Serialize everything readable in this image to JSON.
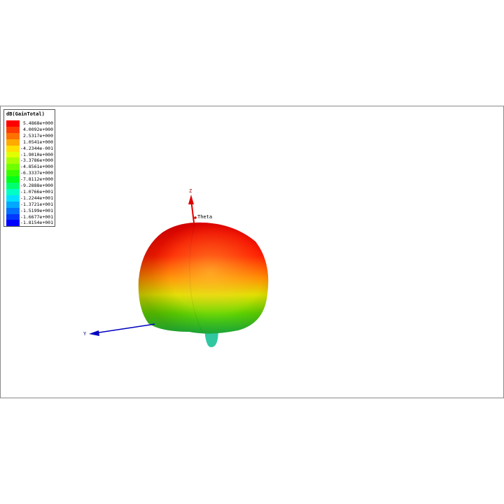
{
  "legend": {
    "title": "dB(GainTotal)",
    "entries": [
      {
        "value": "5.4868e+000",
        "color": "#ff0000"
      },
      {
        "value": "4.0092e+000",
        "color": "#ff3a00"
      },
      {
        "value": "2.5317e+000",
        "color": "#ff7200"
      },
      {
        "value": "1.0541e+000",
        "color": "#ffaa00"
      },
      {
        "value": "-4.2344e-001",
        "color": "#ffe000"
      },
      {
        "value": "-1.9010e+000",
        "color": "#e0ff00"
      },
      {
        "value": "-3.3786e+000",
        "color": "#a8ff00"
      },
      {
        "value": "-4.8561e+000",
        "color": "#70ff00"
      },
      {
        "value": "-6.3337e+000",
        "color": "#38ff00"
      },
      {
        "value": "-7.8112e+000",
        "color": "#00ff1c"
      },
      {
        "value": "-9.2888e+000",
        "color": "#00ff70"
      },
      {
        "value": "-1.0766e+001",
        "color": "#00ffc4"
      },
      {
        "value": "-1.2244e+001",
        "color": "#00e0ff"
      },
      {
        "value": "-1.3721e+001",
        "color": "#00a8ff"
      },
      {
        "value": "-1.5199e+001",
        "color": "#0070ff"
      },
      {
        "value": "-1.6677e+001",
        "color": "#0038ff"
      },
      {
        "value": "-1.8154e+001",
        "color": "#0000ff"
      }
    ]
  },
  "axes": {
    "z_label": "Z",
    "y_label": "Y",
    "theta_label": "Theta",
    "z_color": "#e00000",
    "y_color": "#0000c0"
  }
}
